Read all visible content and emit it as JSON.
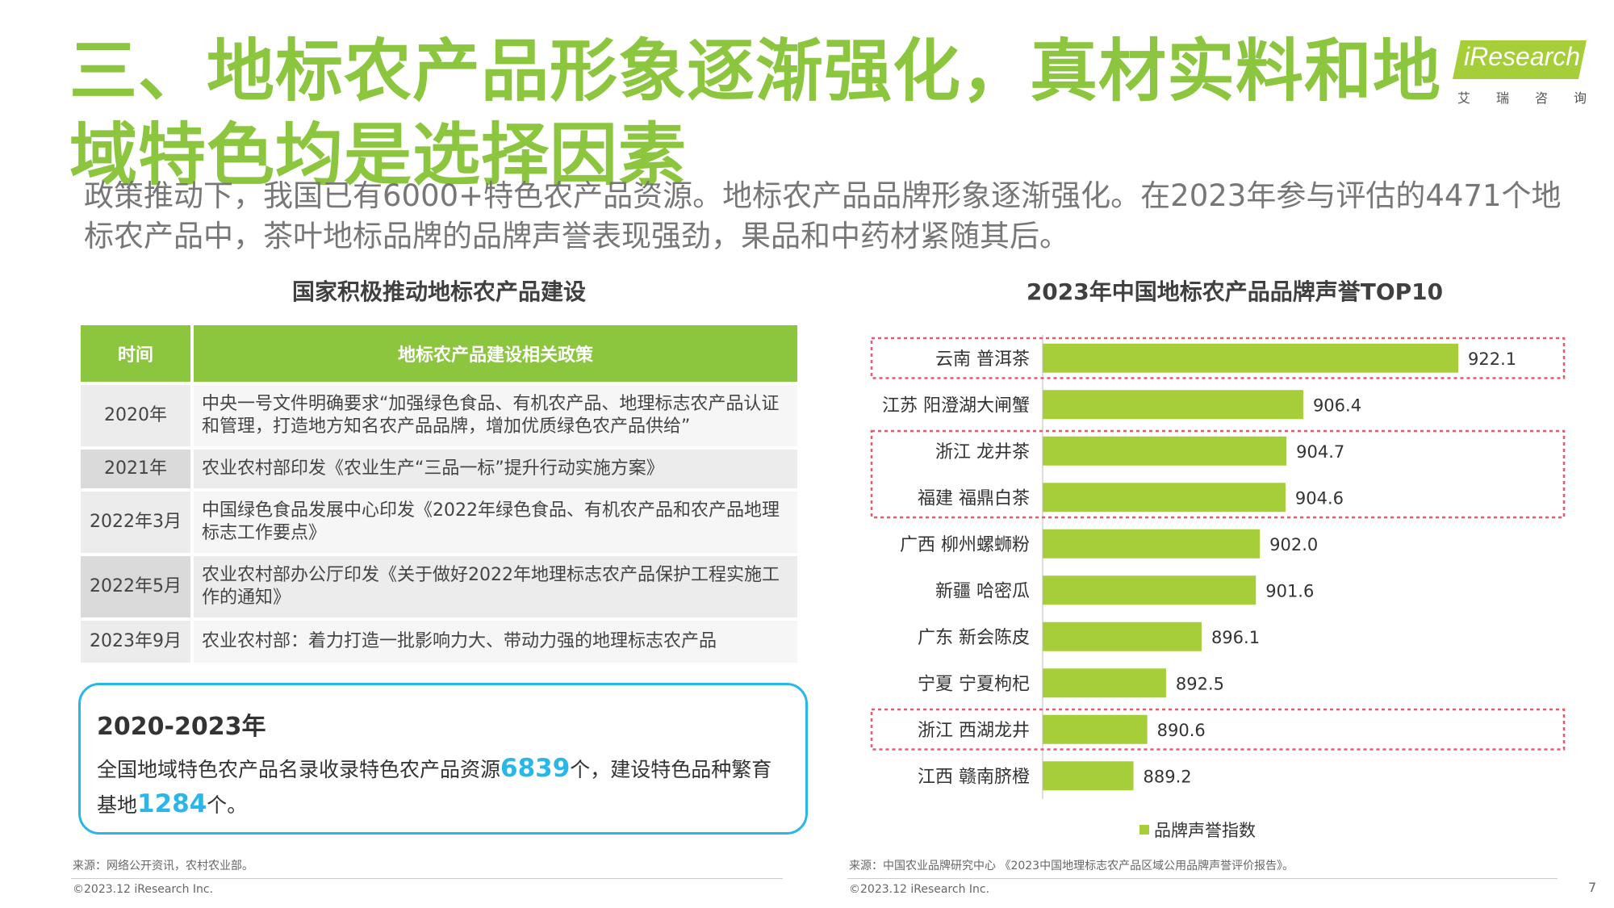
{
  "title": "三、地标农产品形象逐渐强化，真材实料和地域特色均是选择因素",
  "logo": {
    "brand": "iResearch",
    "sub": [
      "艾",
      "瑞",
      "咨",
      "询"
    ]
  },
  "subtitle": "政策推动下，我国已有6000+特色农产品资源。地标农产品品牌形象逐渐强化。在2023年参与评估的4471个地标农产品中，茶叶地标品牌的品牌声誉表现强劲，果品和中药材紧随其后。",
  "left_section": {
    "title": "国家积极推动地标农产品建设",
    "table": {
      "headers": [
        "时间",
        "地标农产品建设相关政策"
      ],
      "rows": [
        [
          "2020年",
          "中央一号文件明确要求“加强绿色食品、有机农产品、地理标志农产品认证和管理，打造地方知名农产品品牌，增加优质绿色农产品供给”"
        ],
        [
          "2021年",
          "农业农村部印发《农业生产“三品一标”提升行动实施方案》"
        ],
        [
          "2022年3月",
          "中国绿色食品发展中心印发《2022年绿色食品、有机农产品和农产品地理标志工作要点》"
        ],
        [
          "2022年5月",
          "农业农村部办公厅印发《关于做好2022年地理标志农产品保护工程实施工作的通知》"
        ],
        [
          "2023年9月",
          "农业农村部：着力打造一批影响力大、带动力强的地理标志农产品"
        ]
      ]
    },
    "callout": {
      "title": "2020-2023年",
      "text1": "全国地域特色农产品名录收录特色农产品资源",
      "num1": "6839",
      "text2": "个，建设特色品种繁育基地",
      "num2": "1284",
      "text3": "个。"
    },
    "source": "来源：网络公开资讯，农村农业部。",
    "copyright": "©2023.12 iResearch Inc."
  },
  "right_section": {
    "title": "2023年中国地标农产品品牌声誉TOP10",
    "source": "来源：中国农业品牌研究中心 《2023中国地理标志农产品区域公用品牌声誉评价报告》。",
    "copyright": "©2023.12 iResearch Inc."
  },
  "page_number": "7",
  "colors": {
    "green": "#8cc63f",
    "bar": "#a6ce39",
    "blue": "#29b6e8",
    "highlight_box": "#e85a6a"
  },
  "chart_data": {
    "type": "bar",
    "orientation": "horizontal",
    "title": "2023年中国地标农产品品牌声誉TOP10",
    "categories": [
      "云南 普洱茶",
      "江苏 阳澄湖大闸蟹",
      "浙江 龙井茶",
      "福建 福鼎白茶",
      "广西 柳州螺蛳粉",
      "新疆 哈密瓜",
      "广东  新会陈皮",
      "宁夏  宁夏枸杞",
      "浙江 西湖龙井",
      "江西 赣南脐橙"
    ],
    "series": [
      {
        "name": "品牌声誉指数",
        "values": [
          922.1,
          906.4,
          904.7,
          904.6,
          902.0,
          901.6,
          896.1,
          892.5,
          890.6,
          889.2
        ]
      }
    ],
    "value_labels": [
      "922.1",
      "906.4",
      "904.7",
      "904.6",
      "902.0",
      "901.6",
      "896.1",
      "892.5",
      "890.6",
      "889.2"
    ],
    "highlighted_groups": [
      [
        0
      ],
      [
        2,
        3
      ],
      [
        8
      ]
    ],
    "legend_position": "bottom",
    "grid": false
  }
}
